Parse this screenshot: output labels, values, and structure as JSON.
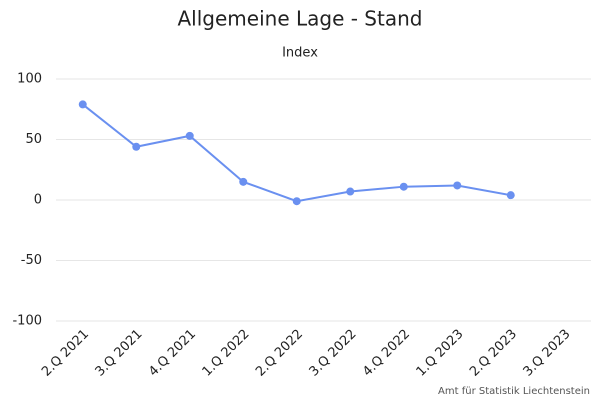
{
  "chart_data": {
    "type": "line",
    "title": "Allgemeine Lage - Stand",
    "subtitle": "Index",
    "credit": "Amt für Statistik Liechtenstein",
    "categories": [
      "2.Q 2021",
      "3.Q 2021",
      "4.Q 2021",
      "1.Q 2022",
      "2.Q 2022",
      "3.Q 2022",
      "4.Q 2022",
      "1.Q 2023",
      "2.Q 2023",
      "3.Q 2023"
    ],
    "values": [
      79,
      44,
      53,
      15,
      -1,
      7,
      11,
      12,
      4,
      null
    ],
    "color": "#6a90f0",
    "ylim": [
      -100,
      100
    ],
    "yticks": [
      -100,
      -50,
      0,
      50,
      100
    ],
    "grid": true
  }
}
